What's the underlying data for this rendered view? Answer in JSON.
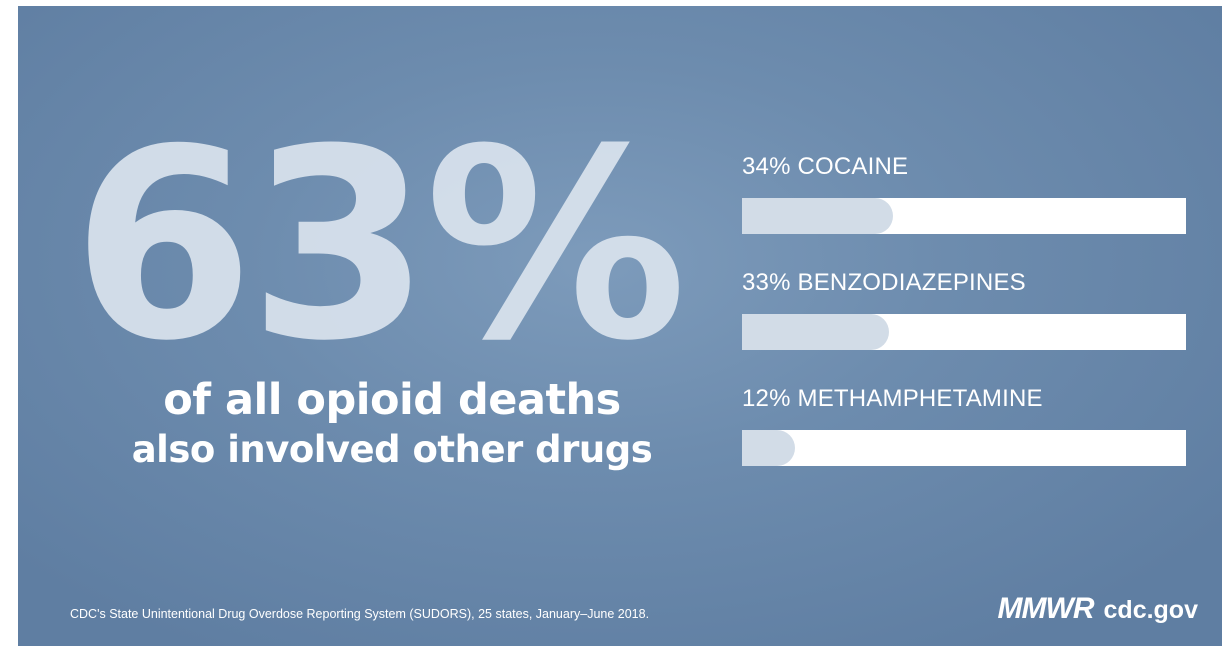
{
  "headline": {
    "big_percent": "63%",
    "line1": "of all opioid deaths",
    "line2": "also involved other drugs"
  },
  "drugs": [
    {
      "label": "34% COCAINE",
      "percent": 34
    },
    {
      "label": "33% BENZODIAZEPINES",
      "percent": 33
    },
    {
      "label": "12% METHAMPHETAMINE",
      "percent": 12
    }
  ],
  "footer": {
    "source": "CDC's State Unintentional Drug Overdose Reporting System (SUDORS), 25 states, January–June 2018.",
    "brand": "MMWR",
    "site": "cdc.gov"
  },
  "colors": {
    "background": "#6d8cae",
    "bar_track": "#ffffff",
    "bar_fill": "#d2dce7",
    "text": "#ffffff"
  }
}
